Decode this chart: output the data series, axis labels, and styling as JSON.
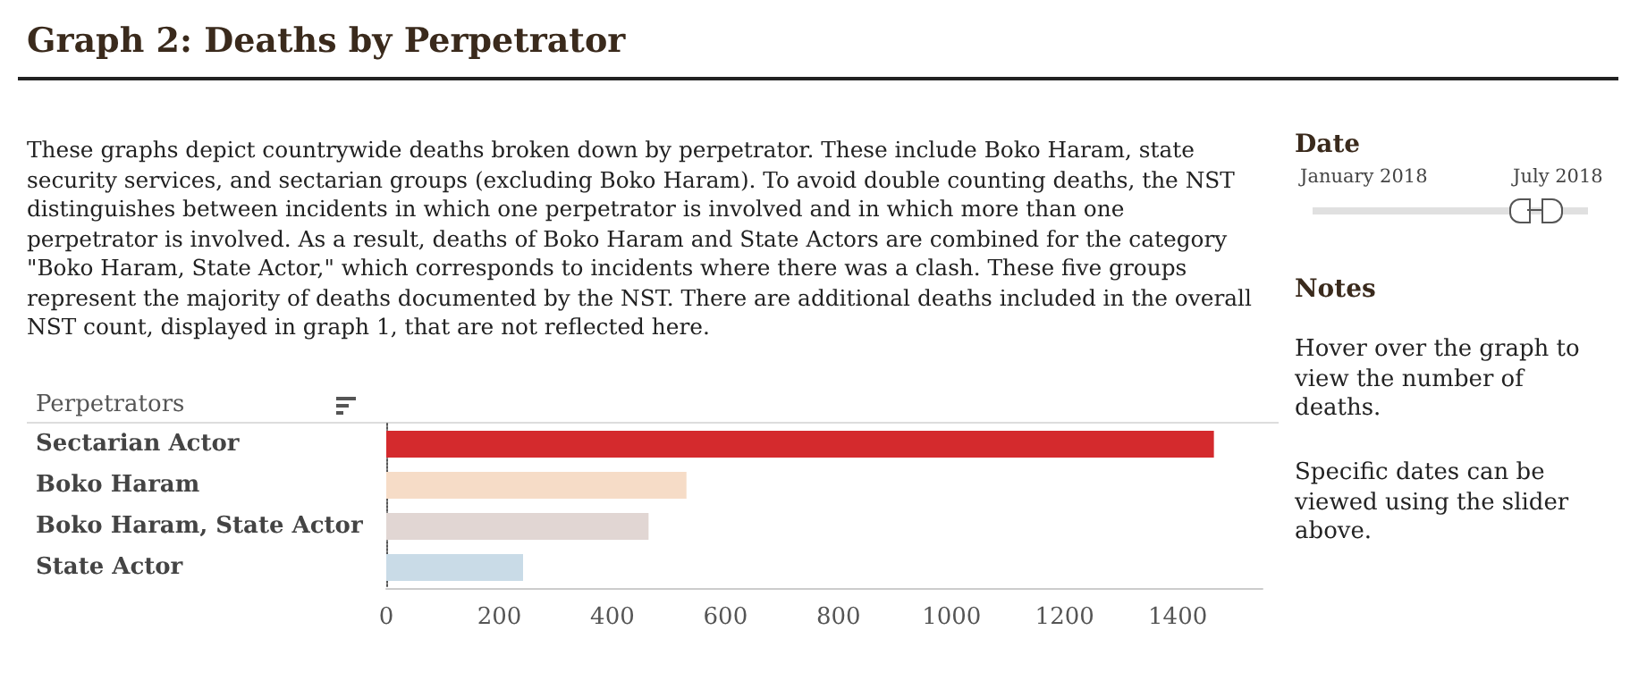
{
  "chart_data": {
    "type": "bar",
    "orientation": "horizontal",
    "title": "Graph 2: Deaths by Perpetrator",
    "ylabel": "Perpetrators",
    "categories": [
      "Sectarian Actor",
      "Boko Haram",
      "Boko Haram, State Actor",
      "State Actor"
    ],
    "values": [
      1464,
      531,
      464,
      242
    ],
    "colors": [
      "#d42a2d",
      "#f6dcc7",
      "#e1d6d3",
      "#c9dbe7"
    ],
    "xlim": [
      0,
      1550
    ],
    "xticks": [
      0,
      200,
      400,
      600,
      800,
      1000,
      1200,
      1400
    ],
    "grid": false,
    "annotations": [
      "These graphs depict countrywide deaths broken down by perpetrator. These include Boko Haram, state security services, and sectarian groups (excluding Boko Haram). To avoid double counting deaths, the NST distinguishes between incidents in which one perpetrator is involved and in which more than one perpetrator is involved. As a result, deaths of Boko Haram and State Actors are combined for the category \"Boko Haram, State Actor,\" which corresponds to incidents where there was a clash. These five groups represent the majority of deaths documented by the NST. There are additional deaths included in the overall NST count, displayed in graph 1, that are not reflected here.",
      "Date",
      "January 2018",
      "July 2018",
      "Notes",
      "Hover over  the graph to view the number of deaths.",
      "Specific dates can be viewed using the slider above."
    ]
  }
}
